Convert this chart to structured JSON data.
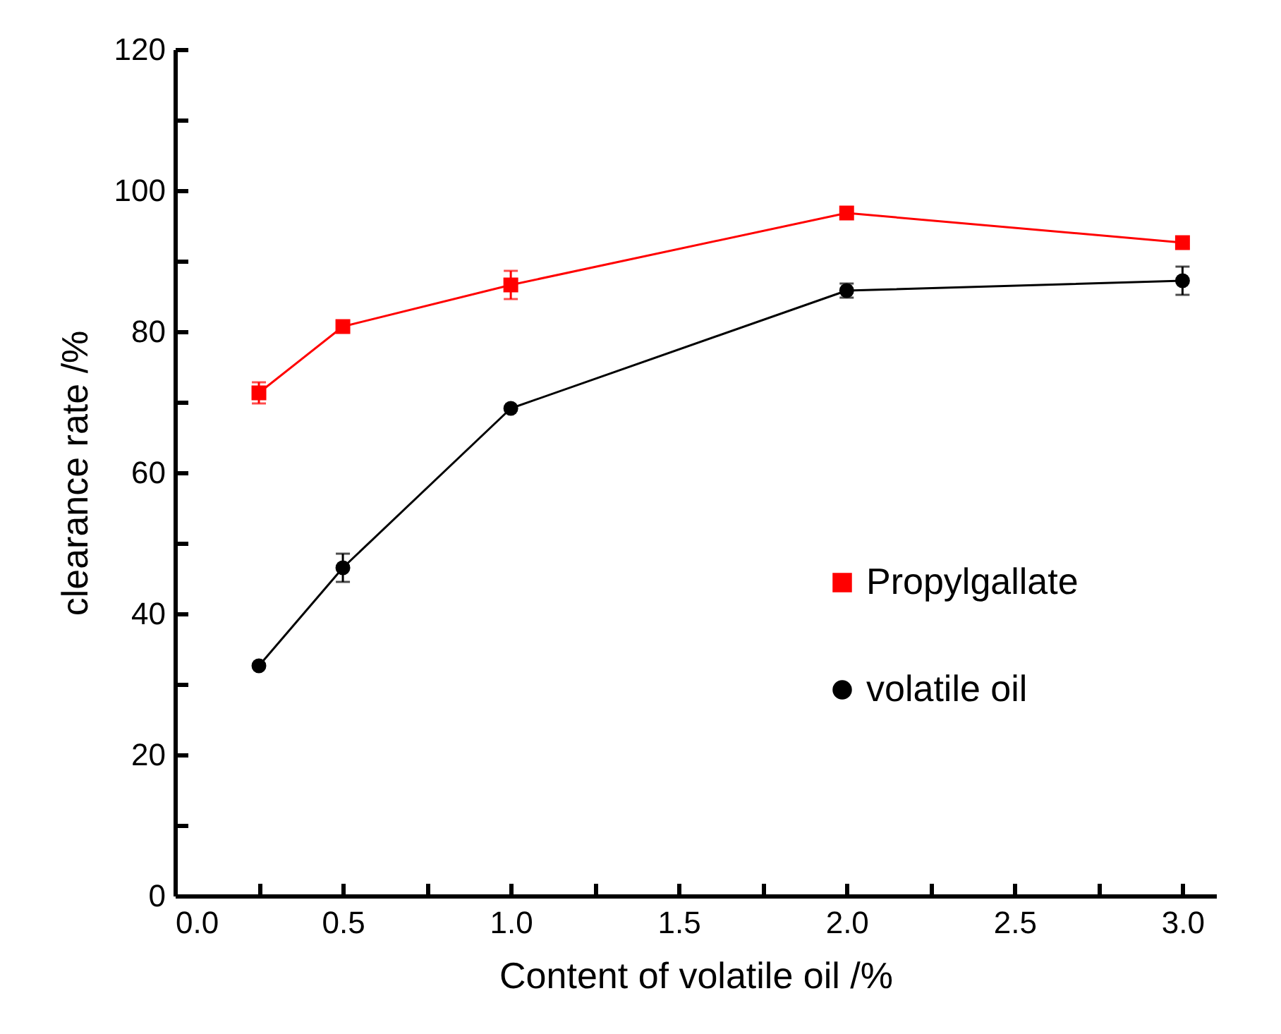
{
  "chart_data": {
    "type": "line",
    "xlabel": "Content of volatile oil /%",
    "ylabel": "clearance rate /%",
    "xlim": [
      0,
      3.1
    ],
    "xticks": [
      {
        "value": 0,
        "label": "0.0"
      },
      {
        "value": 0.25,
        "label": null
      },
      {
        "value": 0.5,
        "label": "0.5"
      },
      {
        "value": 0.75,
        "label": null
      },
      {
        "value": 1,
        "label": "1.0"
      },
      {
        "value": 1.25,
        "label": null
      },
      {
        "value": 1.5,
        "label": "1.5"
      },
      {
        "value": 1.75,
        "label": null
      },
      {
        "value": 2,
        "label": "2.0"
      },
      {
        "value": 2.25,
        "label": null
      },
      {
        "value": 2.5,
        "label": "2.5"
      },
      {
        "value": 2.75,
        "label": null
      },
      {
        "value": 3,
        "label": "3.0"
      }
    ],
    "ylim": [
      0,
      120
    ],
    "yticks": [
      0,
      {
        "value": 10,
        "label": null
      },
      20,
      {
        "value": 30,
        "label": null
      },
      40,
      {
        "value": 50,
        "label": null
      },
      60,
      {
        "value": 70,
        "label": null
      },
      80,
      {
        "value": 90,
        "label": null
      },
      100,
      {
        "value": 110,
        "label": null
      },
      120
    ],
    "x": [
      0.25,
      0.5,
      1,
      2,
      3
    ],
    "series": [
      {
        "name": "Propylgallate",
        "color": "#ff0000",
        "marker": "square",
        "values": [
          71.3,
          80.7,
          86.6,
          96.8,
          92.6
        ],
        "errors": [
          1.5,
          null,
          2,
          null,
          null
        ]
      },
      {
        "name": "volatile oil",
        "color": "#000000",
        "marker": "circle",
        "values": [
          32.6,
          46.5,
          69.1,
          85.8,
          87.2
        ],
        "errors": [
          null,
          2,
          null,
          1,
          2
        ]
      }
    ],
    "legend": "right",
    "grid": false,
    "line_style": "solid"
  }
}
